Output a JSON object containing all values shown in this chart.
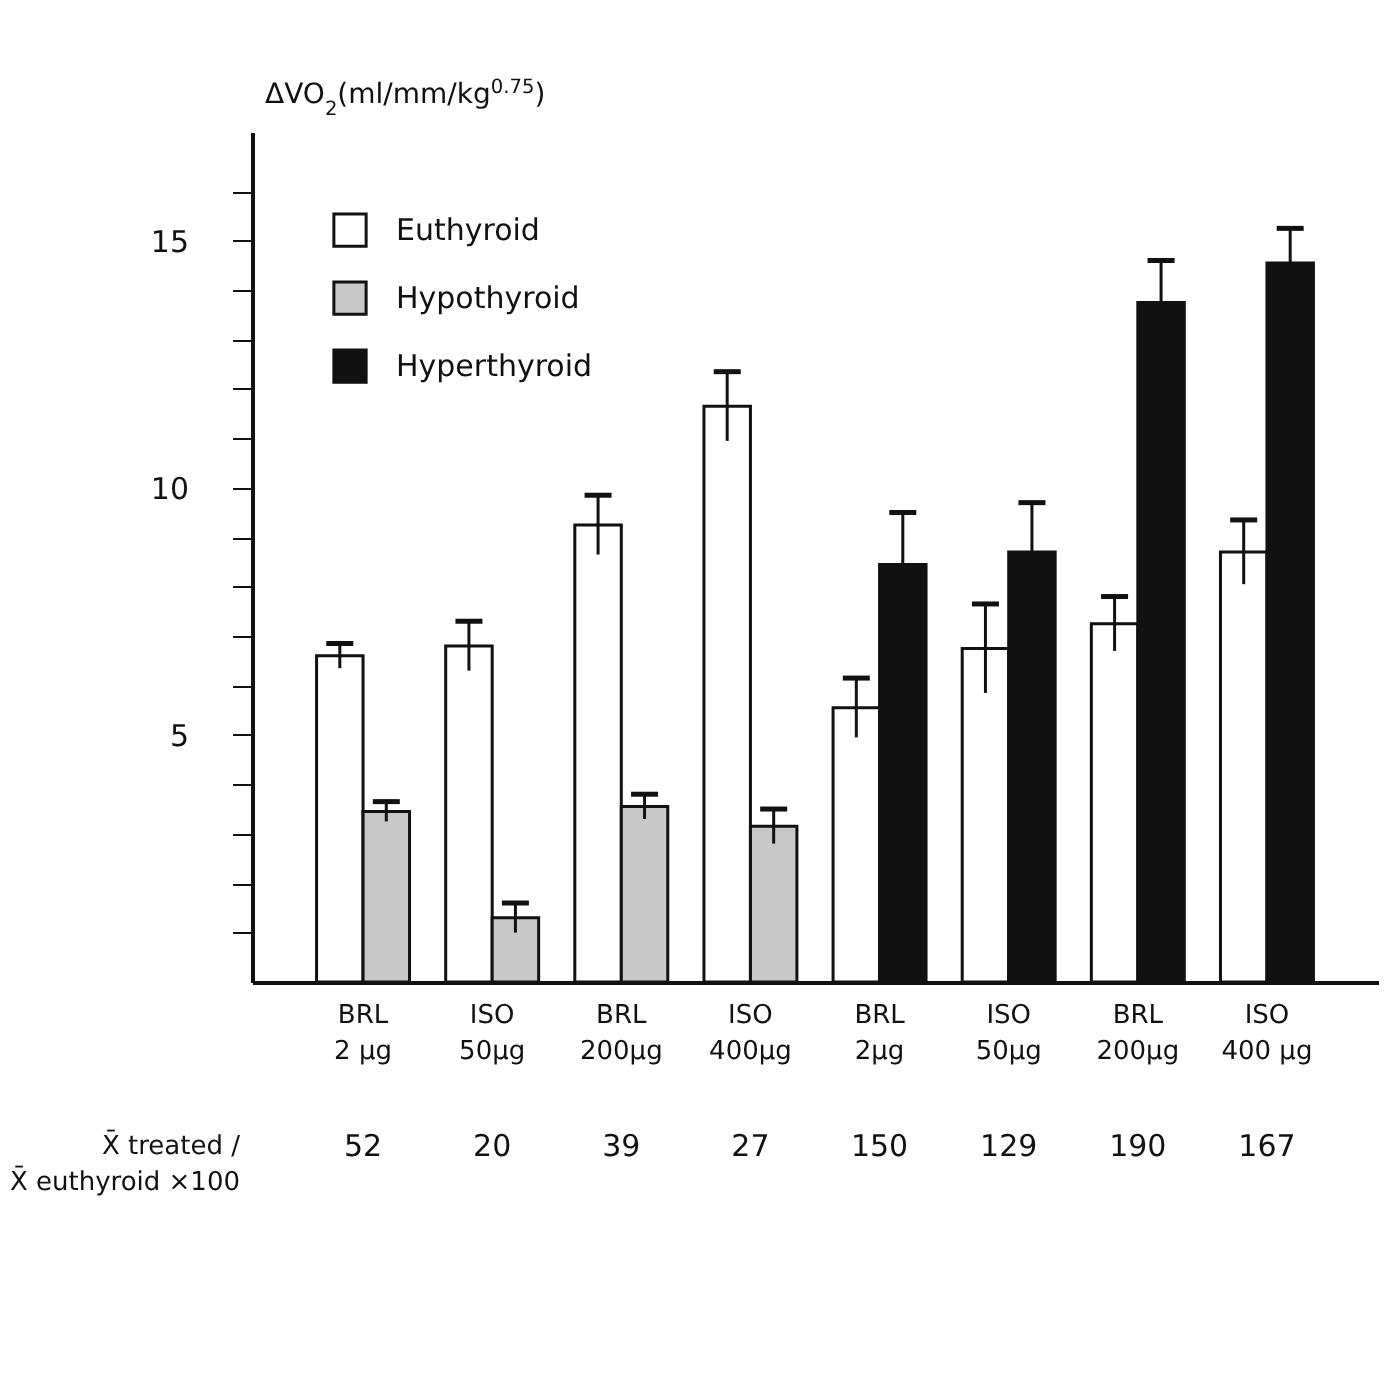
{
  "chart_data": {
    "type": "bar",
    "ylabel": "ΔVO$_{2}$(ml/mm/kg$^{0.75}$)",
    "categories": [
      "BRL 2 µg",
      "ISO 50µg",
      "BRL 200µg",
      "ISO 400µg",
      "BRL 2µg",
      "ISO 50µg",
      "BRL 200µg",
      "ISO 400 µg"
    ],
    "series": [
      {
        "name": "Euthyroid",
        "color": "#ffffff",
        "values": [
          6.6,
          6.8,
          9.25,
          11.65,
          5.55,
          6.75,
          7.25,
          8.7
        ],
        "errors": [
          0.25,
          0.5,
          0.6,
          0.7,
          0.6,
          0.9,
          0.55,
          0.65
        ]
      },
      {
        "name": "Hypothyroid",
        "color": "#c8c8c8",
        "values": [
          3.45,
          1.3,
          3.55,
          3.15,
          null,
          null,
          null,
          null
        ],
        "errors": [
          0.2,
          0.3,
          0.25,
          0.35,
          null,
          null,
          null,
          null
        ]
      },
      {
        "name": "Hyperthyroid",
        "color": "#111111",
        "values": [
          null,
          null,
          null,
          null,
          8.45,
          8.7,
          13.75,
          14.55
        ],
        "errors": [
          null,
          null,
          null,
          null,
          1.05,
          1.0,
          0.85,
          0.7
        ]
      }
    ],
    "ylim": [
      0,
      17.2
    ],
    "yticks": [
      {
        "value": 1,
        "label": null
      },
      {
        "value": 2,
        "label": null
      },
      {
        "value": 3,
        "label": null
      },
      {
        "value": 4,
        "label": null
      },
      5,
      {
        "value": 6,
        "label": null
      },
      {
        "value": 7,
        "label": null
      },
      {
        "value": 8,
        "label": null
      },
      {
        "value": 9,
        "label": null
      },
      10,
      {
        "value": 11,
        "label": null
      },
      {
        "value": 12,
        "label": null
      },
      {
        "value": 13,
        "label": null
      },
      {
        "value": 14,
        "label": null
      },
      15,
      {
        "value": 16,
        "label": null
      }
    ],
    "legend": "top left",
    "grid": false,
    "annotations": [
      "X̄ treated / X̄ euthyroid ×100",
      "52",
      "20",
      "39",
      "27",
      "150",
      "129",
      "190",
      "167"
    ]
  }
}
